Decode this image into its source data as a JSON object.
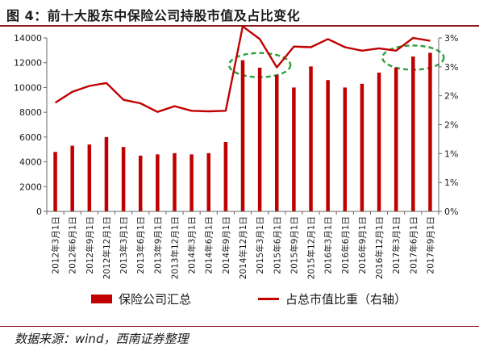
{
  "figure": {
    "title": "图 4：前十大股东中保险公司持股市值及占比变化",
    "source": "数据来源：wind，西南证券整理"
  },
  "colors": {
    "bar": "#c00000",
    "line": "#c00000",
    "highlight": "#2e9e3e",
    "axis": "#666666",
    "text": "#1a1a1a"
  },
  "chart_data": {
    "type": "bar",
    "grid": false,
    "legend_position": "bottom",
    "categories": [
      "2012年3月1日",
      "2012年6月1日",
      "2012年9月1日",
      "2012年12月1日",
      "2013年3月1日",
      "2013年6月1日",
      "2013年9月1日",
      "2013年12月1日",
      "2014年3月1日",
      "2014年6月1日",
      "2014年9月1日",
      "2014年12月1日",
      "2015年3月1日",
      "2015年6月1日",
      "2015年9月1日",
      "2015年12月1日",
      "2016年3月1日",
      "2016年6月1日",
      "2016年9月1日",
      "2016年12月1日",
      "2017年3月1日",
      "2017年6月1日",
      "2017年9月1日"
    ],
    "y_left": {
      "min": 0,
      "max": 14000,
      "ticks": [
        "0",
        "2000",
        "4000",
        "6000",
        "8000",
        "10000",
        "12000",
        "14000"
      ]
    },
    "y_right": {
      "min": 0,
      "max": 3,
      "ticks": [
        "0%",
        "1%",
        "1%",
        "2%",
        "2%",
        "3%",
        "3%"
      ]
    },
    "series": [
      {
        "name": "保险公司汇总",
        "type": "bar",
        "axis": "left",
        "values": [
          4800,
          5300,
          5400,
          6000,
          5200,
          4500,
          4600,
          4700,
          4600,
          4700,
          5600,
          12200,
          11600,
          11000,
          10000,
          11700,
          10600,
          10000,
          10300,
          11200,
          11600,
          12500,
          12800
        ]
      },
      {
        "name": "占总市值比重（右轴）",
        "type": "line",
        "axis": "right",
        "values": [
          1.88,
          2.07,
          2.17,
          2.22,
          1.93,
          1.87,
          1.72,
          1.82,
          1.74,
          1.73,
          1.74,
          3.2,
          2.98,
          2.49,
          2.85,
          2.84,
          2.98,
          2.84,
          2.78,
          2.82,
          2.78,
          3.0,
          2.95
        ]
      }
    ],
    "annotations": [
      {
        "shape": "dashed-ellipse",
        "from": "2014年12月1日",
        "to": "2015年6月1日"
      },
      {
        "shape": "dashed-ellipse",
        "from": "2017年3月1日",
        "to": "2017年9月1日"
      }
    ]
  }
}
